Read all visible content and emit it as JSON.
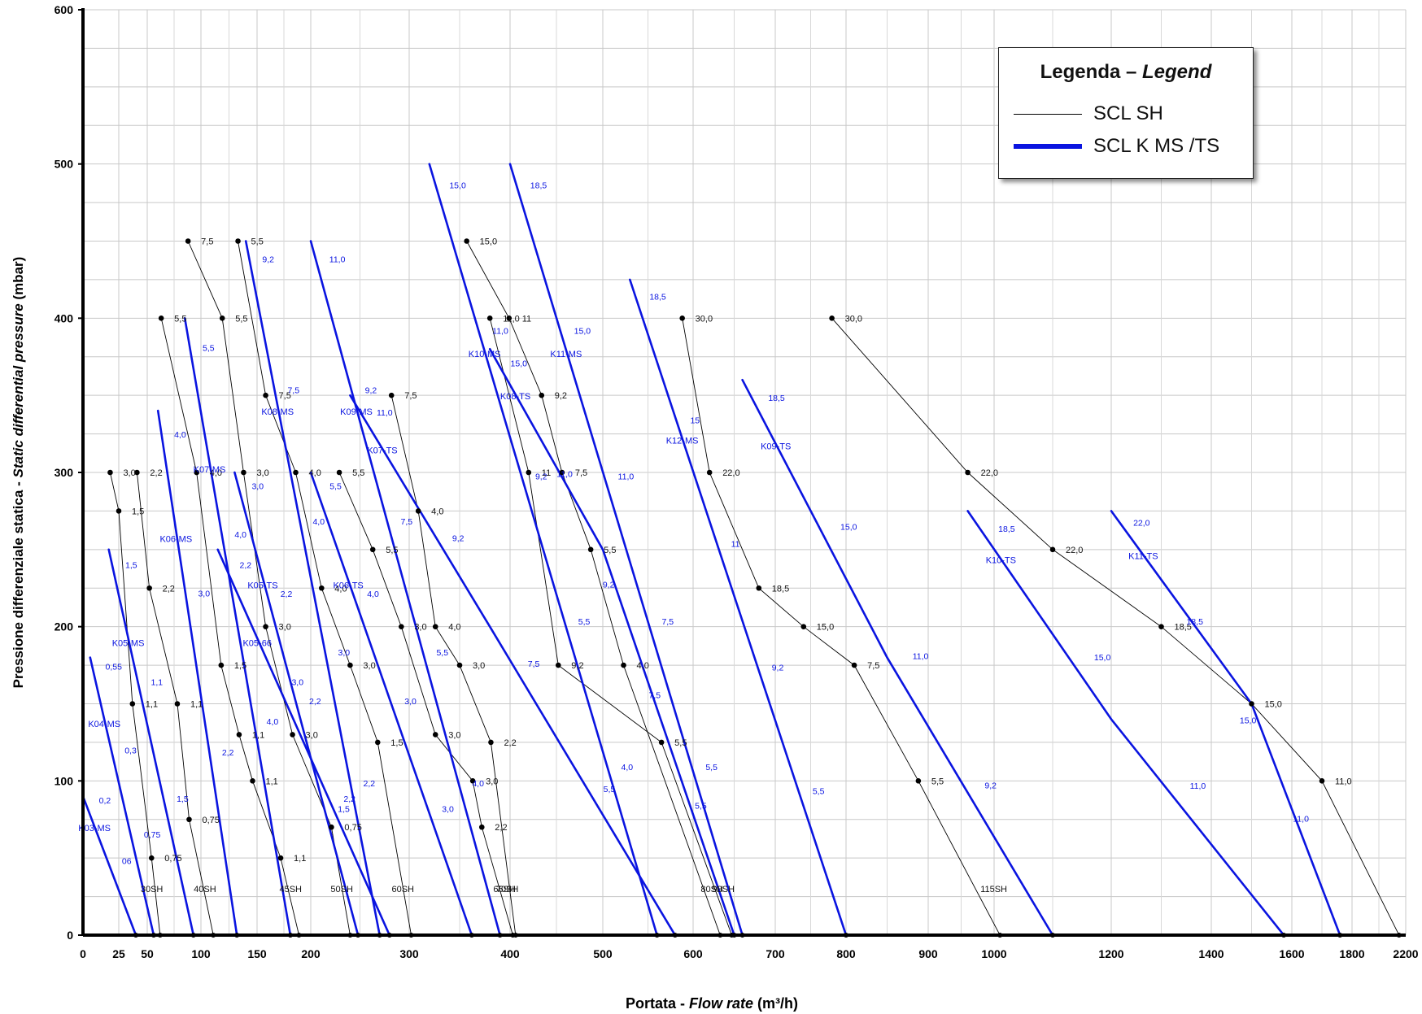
{
  "chart_data": {
    "type": "line",
    "ylabel_main": "Pressione differenziale statica - ",
    "ylabel_italic": "Static differential pressure",
    "ylabel_unit": " (mbar)",
    "xlabel_main": "Portata - ",
    "xlabel_italic": "Flow rate",
    "xlabel_unit": "  (m³/h)",
    "ylim": [
      0,
      600
    ],
    "yticks": [
      0,
      100,
      200,
      300,
      400,
      500,
      600
    ],
    "xticks": [
      "0",
      "25",
      "50",
      "100",
      "150",
      "200",
      "300",
      "400",
      "500",
      "600",
      "700",
      "800",
      "900",
      "1000",
      "1200",
      "1400",
      "1600",
      "1800",
      "2200"
    ],
    "grid": true,
    "legend": {
      "title_main": "Legenda – ",
      "title_italic": "Legend",
      "entries": [
        {
          "label": "SCL SH",
          "color": "#000000"
        },
        {
          "label": "SCL K MS /TS",
          "color": "#0a14e0"
        }
      ]
    },
    "colors": {
      "sh": "#000000",
      "k": "#0a14e0"
    },
    "sh_series": [
      {
        "name": "30SH",
        "points": [
          [
            19,
            300
          ],
          [
            25,
            275
          ],
          [
            37,
            150
          ],
          [
            54,
            50
          ],
          [
            62,
            0
          ]
        ],
        "labels": [
          "3,0",
          "1,5",
          "1,1",
          "0,75"
        ]
      },
      {
        "name": "40SH",
        "points": [
          [
            41,
            300
          ],
          [
            52,
            225
          ],
          [
            78,
            150
          ],
          [
            89,
            75
          ],
          [
            111,
            0
          ]
        ],
        "labels": [
          "2,2",
          "2,2",
          "1,1",
          "0,75"
        ]
      },
      {
        "name": "45SH",
        "points": [
          [
            63,
            400
          ],
          [
            96,
            300
          ],
          [
            118,
            175
          ],
          [
            134,
            130
          ],
          [
            146,
            100
          ],
          [
            172,
            50
          ],
          [
            189,
            0
          ]
        ],
        "labels": [
          "5,5",
          "4,0",
          "1,5",
          "1,1",
          "1,1",
          "1,1"
        ]
      },
      {
        "name": "50SH",
        "points": [
          [
            88,
            450
          ],
          [
            119,
            400
          ],
          [
            138,
            300
          ],
          [
            158,
            200
          ],
          [
            183,
            130
          ],
          [
            221,
            70
          ],
          [
            240,
            0
          ]
        ],
        "labels": [
          "7,5",
          "5,5",
          "3,0",
          "3,0",
          "3,0",
          "0,75"
        ]
      },
      {
        "name": "60SH",
        "points": [
          [
            133,
            450
          ],
          [
            158,
            350
          ],
          [
            186,
            300
          ],
          [
            211,
            225
          ],
          [
            240,
            175
          ],
          [
            268,
            125
          ],
          [
            302,
            0
          ]
        ],
        "labels": [
          "5,5",
          "7,5",
          "4,0",
          "4,0",
          "3,0",
          "1,5"
        ]
      },
      {
        "name": "65SH",
        "points": [
          [
            229,
            300
          ],
          [
            263,
            250
          ],
          [
            292,
            200
          ],
          [
            326,
            130
          ],
          [
            363,
            100
          ],
          [
            372,
            70
          ],
          [
            403,
            0
          ]
        ],
        "labels": [
          "5,5",
          "5,5",
          "3,0",
          "3,0",
          "3,0",
          "2,2"
        ]
      },
      {
        "name": "70SH",
        "points": [
          [
            282,
            350
          ],
          [
            309,
            275
          ],
          [
            326,
            200
          ],
          [
            350,
            175
          ],
          [
            381,
            125
          ],
          [
            406,
            0
          ]
        ],
        "labels": [
          "7,5",
          "4,0",
          "4,0",
          "3,0",
          "2,2"
        ]
      },
      {
        "name": "80SH",
        "points": [
          [
            357,
            450
          ],
          [
            399,
            400
          ],
          [
            434,
            350
          ],
          [
            456,
            300
          ],
          [
            487,
            250
          ],
          [
            523,
            175
          ],
          [
            633,
            0
          ]
        ],
        "labels": [
          "15,0",
          "11",
          "9,2",
          "7,5",
          "5,5",
          "4,0"
        ]
      },
      {
        "name": "90SH",
        "points": [
          [
            380,
            400
          ],
          [
            420,
            300
          ],
          [
            452,
            175
          ],
          [
            565,
            125
          ],
          [
            647,
            0
          ]
        ],
        "labels": [
          "11,0",
          "11",
          "9,2",
          "5,5"
        ]
      },
      {
        "name": "115SH",
        "points": [
          [
            588,
            400
          ],
          [
            620,
            300
          ],
          [
            680,
            225
          ],
          [
            740,
            200
          ],
          [
            810,
            175
          ],
          [
            888,
            100
          ],
          [
            1010,
            0
          ]
        ],
        "labels": [
          "30,0",
          "22,0",
          "18,5",
          "15,0",
          "7,5",
          "5,5"
        ]
      },
      {
        "name": "",
        "points": [
          [
            780,
            400
          ],
          [
            960,
            300
          ],
          [
            1100,
            250
          ],
          [
            1300,
            200
          ],
          [
            1500,
            150
          ],
          [
            1700,
            100
          ],
          [
            2150,
            0
          ]
        ],
        "labels": [
          "30,0",
          "22,0",
          "22,0",
          "18,5",
          "15,0",
          "11,0"
        ]
      }
    ],
    "k_series": [
      {
        "name": "K03-MS",
        "points": [
          [
            0,
            90
          ],
          [
            40,
            0
          ]
        ],
        "labels": [
          "0,2",
          "06"
        ]
      },
      {
        "name": "K04-MS",
        "points": [
          [
            5,
            180
          ],
          [
            56,
            0
          ]
        ],
        "labels": [
          "0,55",
          "0,3",
          "0,75"
        ]
      },
      {
        "name": "K05-MS",
        "points": [
          [
            18,
            250
          ],
          [
            93,
            0
          ]
        ],
        "labels": [
          "1,5",
          "1,1",
          "1,5"
        ]
      },
      {
        "name": "K06-MS",
        "points": [
          [
            60,
            340
          ],
          [
            132,
            0
          ]
        ],
        "labels": [
          "4,0",
          "3,0",
          "2,2"
        ]
      },
      {
        "name": "K07-MS",
        "points": [
          [
            85,
            400
          ],
          [
            181,
            0
          ]
        ],
        "labels": [
          "5,5",
          "4,0",
          "4,0"
        ]
      },
      {
        "name": "K08-MS",
        "points": [
          [
            140,
            450
          ],
          [
            270,
            0
          ]
        ],
        "labels": [
          "9,2",
          "7,5",
          "4,0",
          "3,0",
          "2,2"
        ]
      },
      {
        "name": "K09-MS",
        "points": [
          [
            200,
            450
          ],
          [
            390,
            0
          ]
        ],
        "labels": [
          "11,0",
          "9,2",
          "7,5",
          "5,5",
          "4,0"
        ]
      },
      {
        "name": "K10-MS",
        "points": [
          [
            320,
            500
          ],
          [
            560,
            0
          ]
        ],
        "labels": [
          "15,0",
          "11,0",
          "9,2",
          "5,5",
          "4,0"
        ]
      },
      {
        "name": "K11-MS",
        "points": [
          [
            400,
            500
          ],
          [
            660,
            0
          ]
        ],
        "labels": [
          "18,5",
          "15,0",
          "11,0",
          "7,5",
          "5,5"
        ]
      },
      {
        "name": "K12-MS",
        "points": [
          [
            530,
            425
          ],
          [
            800,
            0
          ]
        ],
        "labels": [
          "18,5",
          "15",
          "11",
          "9,2",
          "5,5"
        ]
      },
      {
        "name": "K05-TS",
        "points": [
          [
            130,
            300
          ],
          [
            248,
            0
          ]
        ],
        "labels": [
          "3,0",
          "2,2",
          "2,2",
          "1,5"
        ]
      },
      {
        "name": "K05-66",
        "points": [
          [
            115,
            250
          ],
          [
            280,
            0
          ]
        ],
        "labels": [
          "2,2",
          "3,0",
          "2,2"
        ]
      },
      {
        "name": "K06-TS",
        "points": [
          [
            200,
            300
          ],
          [
            362,
            0
          ]
        ],
        "labels": [
          "5,5",
          "4,0",
          "3,0",
          "3,0"
        ]
      },
      {
        "name": "K07-TS",
        "points": [
          [
            240,
            350
          ],
          [
            380,
            200
          ],
          [
            580,
            0
          ]
        ],
        "labels": [
          "11,0",
          "9,2",
          "7,5",
          "5,5"
        ]
      },
      {
        "name": "K08-TS",
        "points": [
          [
            380,
            380
          ],
          [
            500,
            250
          ],
          [
            650,
            0
          ]
        ],
        "labels": [
          "15,0",
          "11,0",
          "9,2",
          "7,5",
          "5,5"
        ]
      },
      {
        "name": "K09-TS",
        "points": [
          [
            660,
            360
          ],
          [
            850,
            180
          ],
          [
            1100,
            0
          ]
        ],
        "labels": [
          "18,5",
          "15,0",
          "11,0",
          "9,2"
        ]
      },
      {
        "name": "K10-TS",
        "points": [
          [
            960,
            275
          ],
          [
            1200,
            140
          ],
          [
            1580,
            0
          ]
        ],
        "labels": [
          "18,5",
          "15,0",
          "11,0"
        ]
      },
      {
        "name": "K11-TS",
        "points": [
          [
            1200,
            275
          ],
          [
            1500,
            150
          ],
          [
            1760,
            0
          ]
        ],
        "labels": [
          "22,0",
          "18,5",
          "15,0",
          "11,0"
        ]
      }
    ],
    "annotations": [
      "30SH",
      "40SH",
      "45SH",
      "50SH",
      "60SH",
      "65SH",
      "70SH",
      "80SH",
      "90SH",
      "115SH"
    ]
  }
}
